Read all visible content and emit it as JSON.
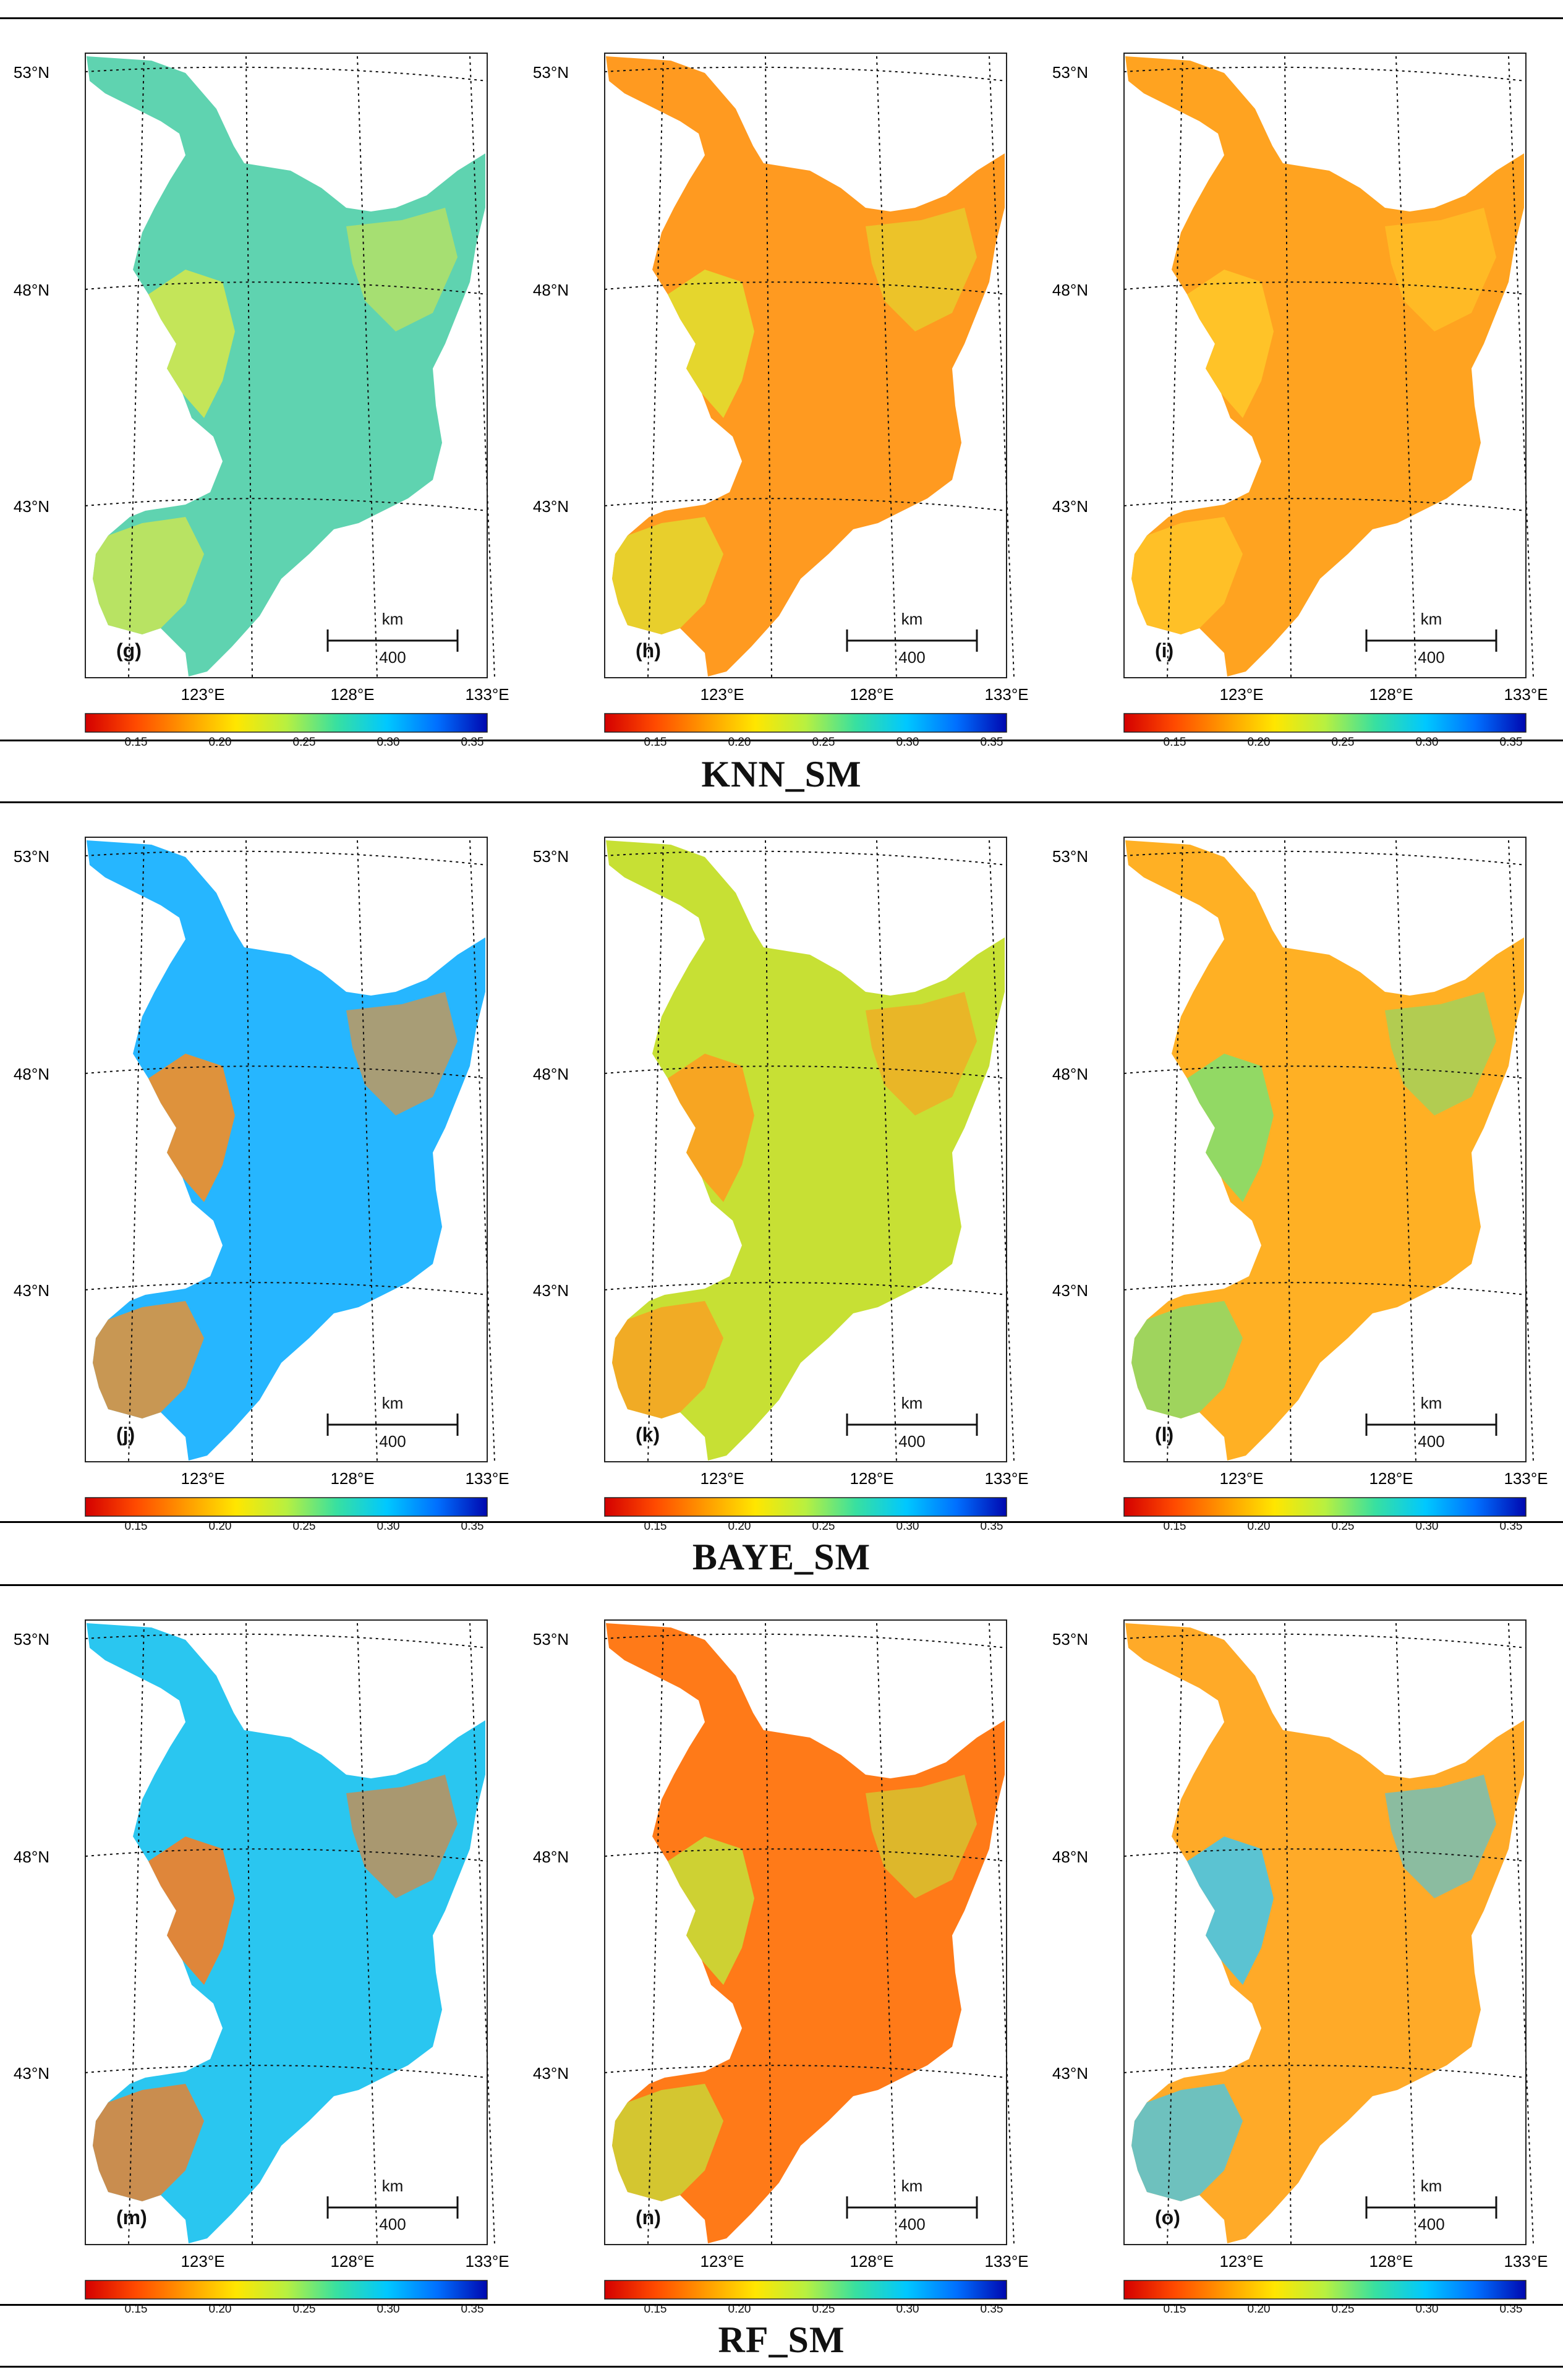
{
  "group_titles": [
    "KNN_SM",
    "BAYE_SM",
    "RF_SM"
  ],
  "latitude_labels": [
    "53°N",
    "48°N",
    "43°N"
  ],
  "longitude_labels": [
    "123°E",
    "128°E",
    "133°E"
  ],
  "scale_bar": {
    "unit": "km",
    "value": "400"
  },
  "colorbar": {
    "ticks": [
      "0.15",
      "0.20",
      "0.25",
      "0.30",
      "0.35"
    ],
    "colors": [
      "#d40000",
      "#ff4a00",
      "#ff9a00",
      "#ffe600",
      "#b8f040",
      "#38e0a0",
      "#00c8ff",
      "#0070ff",
      "#0008b0"
    ]
  },
  "panels": [
    {
      "id": "g",
      "label": "(g)",
      "fill": "#5fd3b0",
      "accent": "#d6e84a"
    },
    {
      "id": "h",
      "label": "(h)",
      "fill": "#ff9a20",
      "accent": "#e0e030"
    },
    {
      "id": "i",
      "label": "(i)",
      "fill": "#ffa320",
      "accent": "#ffc92a"
    },
    {
      "id": "j",
      "label": "(j)",
      "fill": "#26b6ff",
      "accent": "#ff8c1a"
    },
    {
      "id": "k",
      "label": "(k)",
      "fill": "#c7e034",
      "accent": "#ff9a20"
    },
    {
      "id": "l",
      "label": "(l)",
      "fill": "#ffb024",
      "accent": "#7fe070"
    },
    {
      "id": "m",
      "label": "(m)",
      "fill": "#2ac6f0",
      "accent": "#ff7a1a"
    },
    {
      "id": "n",
      "label": "(n)",
      "fill": "#ff7a18",
      "accent": "#c6e038"
    },
    {
      "id": "o",
      "label": "(o)",
      "fill": "#ffaa28",
      "accent": "#3ec8f0"
    }
  ]
}
